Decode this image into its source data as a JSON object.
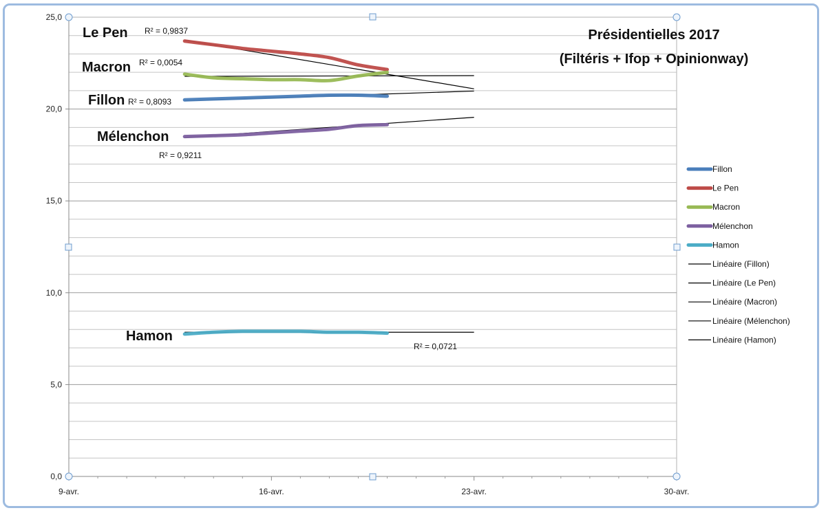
{
  "chart_data": {
    "type": "line",
    "title_lines": [
      "Présidentielles 2017",
      "(Filtéris + Ifop + Opinionway)"
    ],
    "x_ticks": [
      "9-avr.",
      "16-avr.",
      "23-avr.",
      "30-avr."
    ],
    "x_range": [
      "2017-04-09",
      "2017-04-30"
    ],
    "y_ticks": [
      "0,0",
      "5,0",
      "10,0",
      "15,0",
      "20,0",
      "25,0"
    ],
    "ylim": [
      0,
      25
    ],
    "grid": true,
    "legend_position": "right",
    "x": [
      "2017-04-13",
      "2017-04-14",
      "2017-04-15",
      "2017-04-16",
      "2017-04-17",
      "2017-04-18",
      "2017-04-19",
      "2017-04-20"
    ],
    "series": [
      {
        "name": "Fillon",
        "label": "Fillon",
        "r2": "R² = 0,8093",
        "color": "#4a7ebb",
        "values": [
          20.5,
          20.55,
          20.6,
          20.65,
          20.7,
          20.75,
          20.75,
          20.7
        ],
        "trend": [
          20.45,
          20.98
        ]
      },
      {
        "name": "Le Pen",
        "label": "Le Pen",
        "r2": "R² = 0,9837",
        "color": "#be4b48",
        "values": [
          23.7,
          23.5,
          23.3,
          23.15,
          23.0,
          22.8,
          22.4,
          22.15
        ],
        "trend": [
          23.75,
          21.1
        ]
      },
      {
        "name": "Macron",
        "label": "Macron",
        "r2": "R² = 0,0054",
        "color": "#98b954",
        "values": [
          21.9,
          21.7,
          21.65,
          21.6,
          21.6,
          21.55,
          21.8,
          22.0
        ],
        "trend": [
          21.78,
          21.82
        ]
      },
      {
        "name": "Mélenchon",
        "label": "Mélenchon",
        "r2": "R² = 0,9211",
        "color": "#7d60a0",
        "values": [
          18.5,
          18.55,
          18.6,
          18.7,
          18.8,
          18.9,
          19.1,
          19.15
        ],
        "trend": [
          18.45,
          19.55
        ]
      },
      {
        "name": "Hamon",
        "label": "Hamon",
        "r2": "R² = 0,0721",
        "color": "#4bacc6",
        "values": [
          7.75,
          7.85,
          7.9,
          7.9,
          7.9,
          7.85,
          7.85,
          7.8
        ],
        "trend": [
          7.85,
          7.85
        ]
      }
    ],
    "legend": [
      {
        "label": "Fillon",
        "kind": "series",
        "color": "#4a7ebb"
      },
      {
        "label": "Le Pen",
        "kind": "series",
        "color": "#be4b48"
      },
      {
        "label": "Macron",
        "kind": "series",
        "color": "#98b954"
      },
      {
        "label": "Mélenchon",
        "kind": "series",
        "color": "#7d60a0"
      },
      {
        "label": "Hamon",
        "kind": "series",
        "color": "#4bacc6"
      },
      {
        "label": "Linéaire (Fillon)",
        "kind": "trend",
        "color": "#000000"
      },
      {
        "label": "Linéaire (Le Pen)",
        "kind": "trend",
        "color": "#000000"
      },
      {
        "label": "Linéaire (Macron)",
        "kind": "trend",
        "color": "#000000"
      },
      {
        "label": "Linéaire (Mélenchon)",
        "kind": "trend",
        "color": "#000000"
      },
      {
        "label": "Linéaire (Hamon)",
        "kind": "trend",
        "color": "#000000"
      }
    ]
  }
}
